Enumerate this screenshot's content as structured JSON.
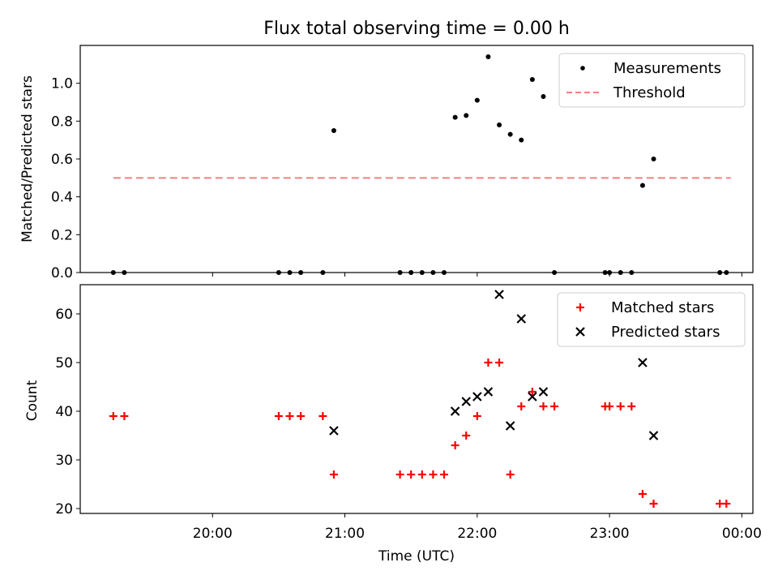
{
  "chart_data": [
    {
      "type": "scatter",
      "title": "Flux total observing time = 0.00 h",
      "xlabel": "",
      "ylabel": "Matched/Predicted stars",
      "ylim": [
        0,
        1.2
      ],
      "yticks": [
        0.0,
        0.2,
        0.4,
        0.6,
        0.8,
        1.0
      ],
      "ytick_labels": [
        "0.0",
        "0.2",
        "0.4",
        "0.6",
        "0.8",
        "1.0"
      ],
      "legend_position": "top-right",
      "legend": [
        "Measurements",
        "Threshold"
      ],
      "series": [
        {
          "name": "Measurements",
          "kind": "points",
          "color": "#000000",
          "points": [
            {
              "x": "19:15",
              "y": 0.0
            },
            {
              "x": "19:20",
              "y": 0.0
            },
            {
              "x": "20:30",
              "y": 0.0
            },
            {
              "x": "20:35",
              "y": 0.0
            },
            {
              "x": "20:40",
              "y": 0.0
            },
            {
              "x": "20:50",
              "y": 0.0
            },
            {
              "x": "20:55",
              "y": 0.75
            },
            {
              "x": "21:25",
              "y": 0.0
            },
            {
              "x": "21:30",
              "y": 0.0
            },
            {
              "x": "21:35",
              "y": 0.0
            },
            {
              "x": "21:40",
              "y": 0.0
            },
            {
              "x": "21:45",
              "y": 0.0
            },
            {
              "x": "21:50",
              "y": 0.82
            },
            {
              "x": "21:55",
              "y": 0.83
            },
            {
              "x": "22:00",
              "y": 0.91
            },
            {
              "x": "22:05",
              "y": 1.14
            },
            {
              "x": "22:10",
              "y": 0.78
            },
            {
              "x": "22:15",
              "y": 0.73
            },
            {
              "x": "22:20",
              "y": 0.7
            },
            {
              "x": "22:25",
              "y": 1.02
            },
            {
              "x": "22:30",
              "y": 0.93
            },
            {
              "x": "22:35",
              "y": 0.0
            },
            {
              "x": "22:58",
              "y": 0.0
            },
            {
              "x": "23:00",
              "y": 0.0
            },
            {
              "x": "23:05",
              "y": 0.0
            },
            {
              "x": "23:10",
              "y": 0.0
            },
            {
              "x": "23:15",
              "y": 0.46
            },
            {
              "x": "23:20",
              "y": 0.6
            },
            {
              "x": "23:50",
              "y": 0.0
            },
            {
              "x": "23:53",
              "y": 0.0
            }
          ]
        },
        {
          "name": "Threshold",
          "kind": "dashed-line",
          "color": "#f08080",
          "points": [
            {
              "x": "19:15",
              "y": 0.5
            },
            {
              "x": "23:55",
              "y": 0.5
            }
          ]
        }
      ]
    },
    {
      "type": "scatter",
      "title": "",
      "xlabel": "Time (UTC)",
      "ylabel": "Count",
      "xlim": [
        "19:00",
        "00:05"
      ],
      "ylim": [
        19,
        66
      ],
      "yticks": [
        20,
        30,
        40,
        50,
        60
      ],
      "ytick_labels": [
        "20",
        "30",
        "40",
        "50",
        "60"
      ],
      "xticks": [
        "20:00",
        "21:00",
        "22:00",
        "23:00",
        "24:00"
      ],
      "xtick_labels": [
        "20:00",
        "21:00",
        "22:00",
        "23:00",
        "00:00"
      ],
      "legend_position": "top-right",
      "legend": [
        "Matched stars",
        "Predicted stars"
      ],
      "series": [
        {
          "name": "Matched stars",
          "marker": "plus",
          "color": "#ff0000",
          "points": [
            {
              "x": "19:15",
              "y": 39
            },
            {
              "x": "19:20",
              "y": 39
            },
            {
              "x": "20:30",
              "y": 39
            },
            {
              "x": "20:35",
              "y": 39
            },
            {
              "x": "20:40",
              "y": 39
            },
            {
              "x": "20:50",
              "y": 39
            },
            {
              "x": "20:55",
              "y": 27
            },
            {
              "x": "21:25",
              "y": 27
            },
            {
              "x": "21:30",
              "y": 27
            },
            {
              "x": "21:35",
              "y": 27
            },
            {
              "x": "21:40",
              "y": 27
            },
            {
              "x": "21:45",
              "y": 27
            },
            {
              "x": "21:50",
              "y": 33
            },
            {
              "x": "21:55",
              "y": 35
            },
            {
              "x": "22:00",
              "y": 39
            },
            {
              "x": "22:05",
              "y": 50
            },
            {
              "x": "22:10",
              "y": 50
            },
            {
              "x": "22:15",
              "y": 27
            },
            {
              "x": "22:20",
              "y": 41
            },
            {
              "x": "22:25",
              "y": 44
            },
            {
              "x": "22:30",
              "y": 41
            },
            {
              "x": "22:35",
              "y": 41
            },
            {
              "x": "22:58",
              "y": 41
            },
            {
              "x": "23:00",
              "y": 41
            },
            {
              "x": "23:05",
              "y": 41
            },
            {
              "x": "23:10",
              "y": 41
            },
            {
              "x": "23:15",
              "y": 23
            },
            {
              "x": "23:20",
              "y": 21
            },
            {
              "x": "23:50",
              "y": 21
            },
            {
              "x": "23:53",
              "y": 21
            }
          ]
        },
        {
          "name": "Predicted stars",
          "marker": "x",
          "color": "#000000",
          "points": [
            {
              "x": "20:55",
              "y": 36
            },
            {
              "x": "21:50",
              "y": 40
            },
            {
              "x": "21:55",
              "y": 42
            },
            {
              "x": "22:00",
              "y": 43
            },
            {
              "x": "22:05",
              "y": 44
            },
            {
              "x": "22:10",
              "y": 64
            },
            {
              "x": "22:15",
              "y": 37
            },
            {
              "x": "22:20",
              "y": 59
            },
            {
              "x": "22:25",
              "y": 43
            },
            {
              "x": "22:30",
              "y": 44
            },
            {
              "x": "23:15",
              "y": 50
            },
            {
              "x": "23:20",
              "y": 35
            }
          ]
        }
      ]
    }
  ]
}
